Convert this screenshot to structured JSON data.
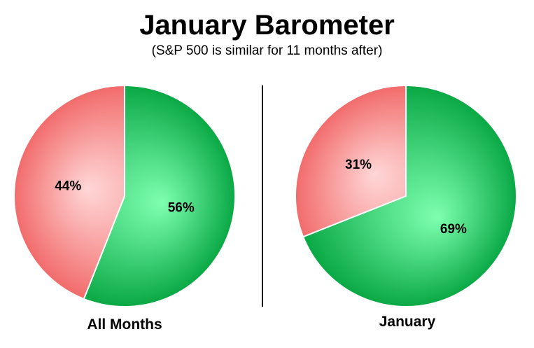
{
  "title": "January Barometer",
  "subtitle": "(S&P 500 is similar for 11 months after)",
  "colors": {
    "green_light": "#7dffb0",
    "green_dark": "#0aa845",
    "red_light": "#ffd6d6",
    "red_dark": "#f26b6b"
  },
  "chart_data": [
    {
      "type": "pie",
      "label": "All Months",
      "slices": [
        {
          "label": "56%",
          "value": 56,
          "color": "green"
        },
        {
          "label": "44%",
          "value": 44,
          "color": "red"
        }
      ]
    },
    {
      "type": "pie",
      "label": "January",
      "slices": [
        {
          "label": "69%",
          "value": 69,
          "color": "green"
        },
        {
          "label": "31%",
          "value": 31,
          "color": "red"
        }
      ]
    }
  ]
}
